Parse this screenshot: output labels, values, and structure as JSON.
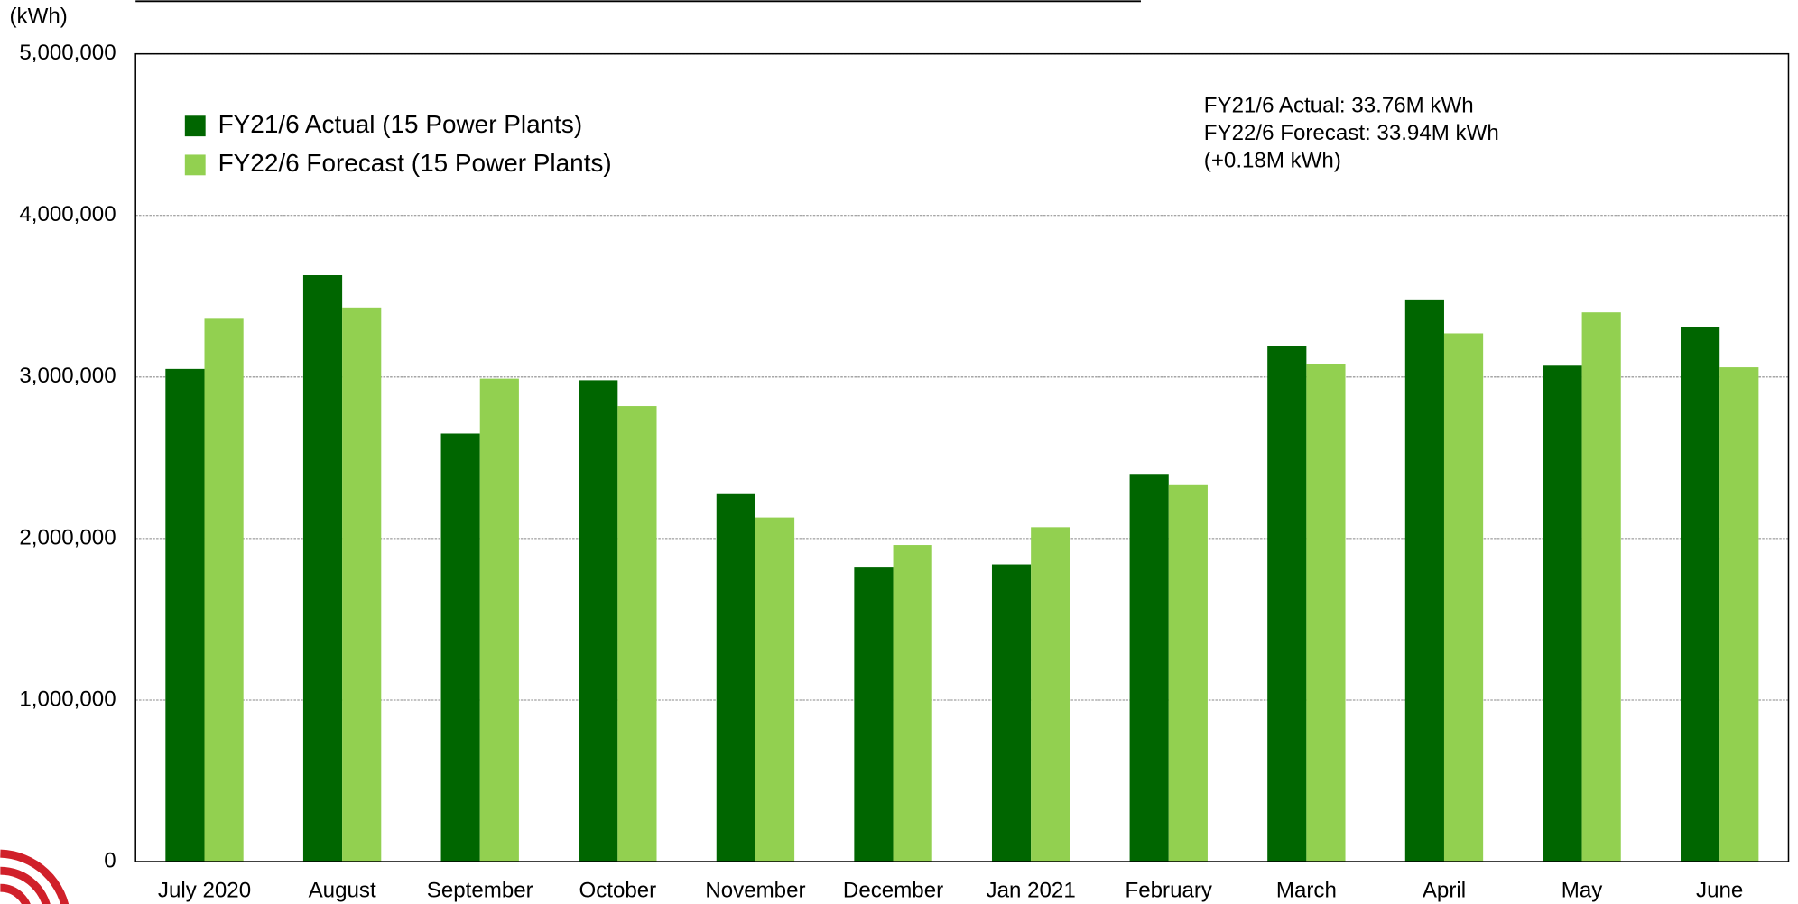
{
  "chart_data": {
    "type": "bar",
    "y_axis_label": "(kWh)",
    "categories": [
      "July 2020",
      "August",
      "September",
      "October",
      "November",
      "December",
      "Jan 2021",
      "February",
      "March",
      "April",
      "May",
      "June"
    ],
    "series": [
      {
        "name": "FY21/6 Actual (15 Power Plants)",
        "color": "#006600",
        "values": [
          3050000,
          3630000,
          2650000,
          2980000,
          2280000,
          1820000,
          1840000,
          2400000,
          3190000,
          3480000,
          3070000,
          3310000
        ]
      },
      {
        "name": "FY22/6 Forecast (15 Power Plants)",
        "color": "#92d050",
        "values": [
          3360000,
          3430000,
          2990000,
          2820000,
          2130000,
          1960000,
          2070000,
          2330000,
          3080000,
          3270000,
          3400000,
          3060000
        ]
      }
    ],
    "annotation": [
      "FY21/6 Actual: 33.76M kWh",
      "FY22/6 Forecast: 33.94M kWh",
      "(+0.18M kWh)"
    ],
    "ylim": [
      0,
      5000000
    ],
    "yticks": [
      0,
      {
        "value": 1000000,
        "label": "1,000,000"
      },
      {
        "value": 2000000,
        "label": "2,000,000"
      },
      {
        "value": 3000000,
        "label": "3,000,000"
      },
      {
        "value": 4000000,
        "label": "4,000,000"
      },
      {
        "value": 5000000,
        "label": "5,000,000"
      }
    ],
    "grid": true,
    "legend": "upper left"
  }
}
